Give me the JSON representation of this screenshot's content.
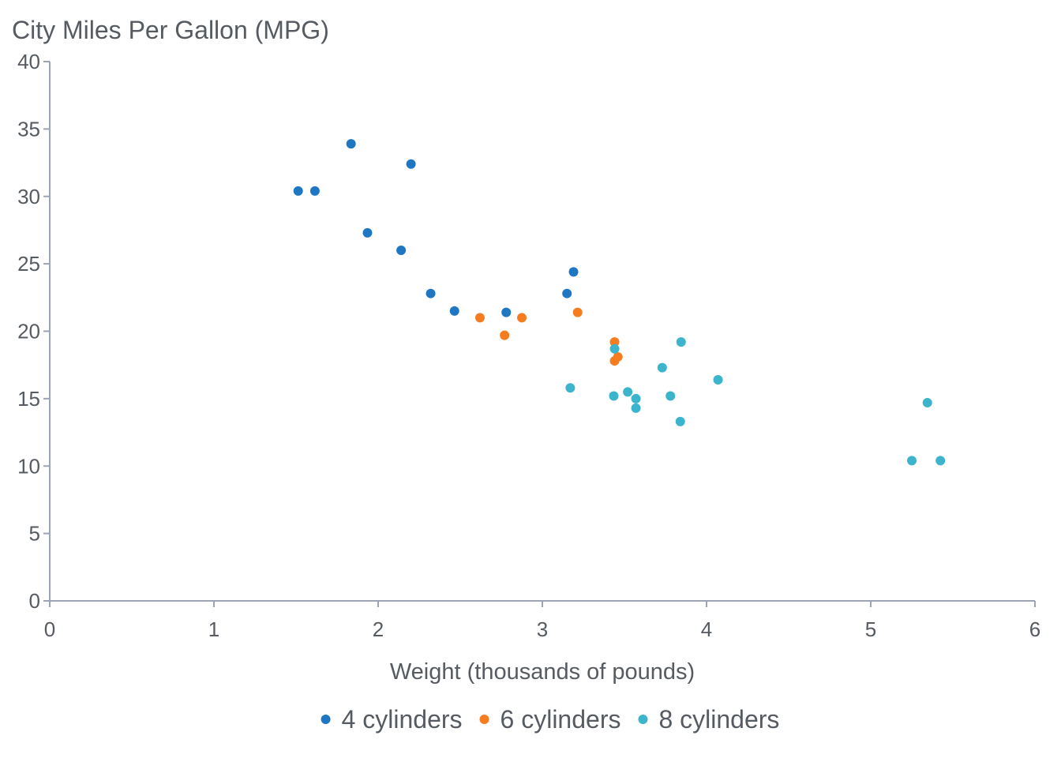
{
  "chart_data": {
    "type": "scatter",
    "xlabel": "Weight (thousands of pounds)",
    "ylabel": "City Miles Per Gallon (MPG)",
    "xlim": [
      0,
      6
    ],
    "ylim": [
      0,
      40
    ],
    "x_ticks": [
      "0",
      "1",
      "2",
      "3",
      "4",
      "5",
      "6"
    ],
    "y_ticks": [
      "0",
      "5",
      "10",
      "15",
      "20",
      "25",
      "30",
      "35",
      "40"
    ],
    "grid": false,
    "legend": "bottom",
    "series": [
      {
        "name": "4 cylinders",
        "color": "#1f77c4",
        "points": [
          [
            1.513,
            30.4
          ],
          [
            1.615,
            30.4
          ],
          [
            1.835,
            33.9
          ],
          [
            1.935,
            27.3
          ],
          [
            2.14,
            26.0
          ],
          [
            2.2,
            32.4
          ],
          [
            2.32,
            22.8
          ],
          [
            2.465,
            21.5
          ],
          [
            2.78,
            21.4
          ],
          [
            3.15,
            22.8
          ],
          [
            3.19,
            24.4
          ]
        ]
      },
      {
        "name": "6 cylinders",
        "color": "#f57c1f",
        "points": [
          [
            2.62,
            21.0
          ],
          [
            2.77,
            19.7
          ],
          [
            2.875,
            21.0
          ],
          [
            3.215,
            21.4
          ],
          [
            3.44,
            19.2
          ],
          [
            3.44,
            17.8
          ],
          [
            3.46,
            18.1
          ]
        ]
      },
      {
        "name": "8 cylinders",
        "color": "#3bb4cc",
        "points": [
          [
            3.17,
            15.8
          ],
          [
            3.435,
            15.2
          ],
          [
            3.44,
            18.7
          ],
          [
            3.52,
            15.5
          ],
          [
            3.57,
            15.0
          ],
          [
            3.57,
            14.3
          ],
          [
            3.73,
            17.3
          ],
          [
            3.78,
            15.2
          ],
          [
            3.84,
            13.3
          ],
          [
            3.845,
            19.2
          ],
          [
            4.07,
            16.4
          ],
          [
            5.25,
            10.4
          ],
          [
            5.345,
            14.7
          ],
          [
            5.424,
            10.4
          ]
        ]
      }
    ]
  }
}
